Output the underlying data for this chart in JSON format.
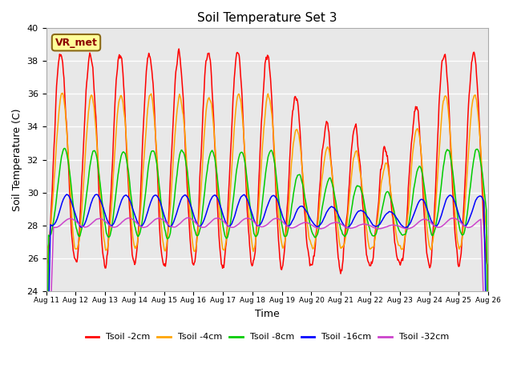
{
  "title": "Soil Temperature Set 3",
  "xlabel": "Time",
  "ylabel": "Soil Temperature (C)",
  "ylim": [
    24,
    40
  ],
  "yticks": [
    24,
    26,
    28,
    30,
    32,
    34,
    36,
    38,
    40
  ],
  "bg_color": "#e8e8e8",
  "annotation_text": "VR_met",
  "annotation_color": "#8B0000",
  "annotation_bg": "#FFFF99",
  "series": [
    {
      "label": "Tsoil -2cm",
      "color": "#FF0000"
    },
    {
      "label": "Tsoil -4cm",
      "color": "#FFA500"
    },
    {
      "label": "Tsoil -8cm",
      "color": "#00CC00"
    },
    {
      "label": "Tsoil -16cm",
      "color": "#0000FF"
    },
    {
      "label": "Tsoil -32cm",
      "color": "#CC44CC"
    }
  ],
  "xtick_labels": [
    "Aug 11",
    "Aug 12",
    "Aug 13",
    "Aug 14",
    "Aug 15",
    "Aug 16",
    "Aug 17",
    "Aug 18",
    "Aug 19",
    "Aug 20",
    "Aug 21",
    "Aug 22",
    "Aug 23",
    "Aug 24",
    "Aug 25",
    "Aug 26"
  ],
  "n_days": 15,
  "pts_per_day": 48
}
